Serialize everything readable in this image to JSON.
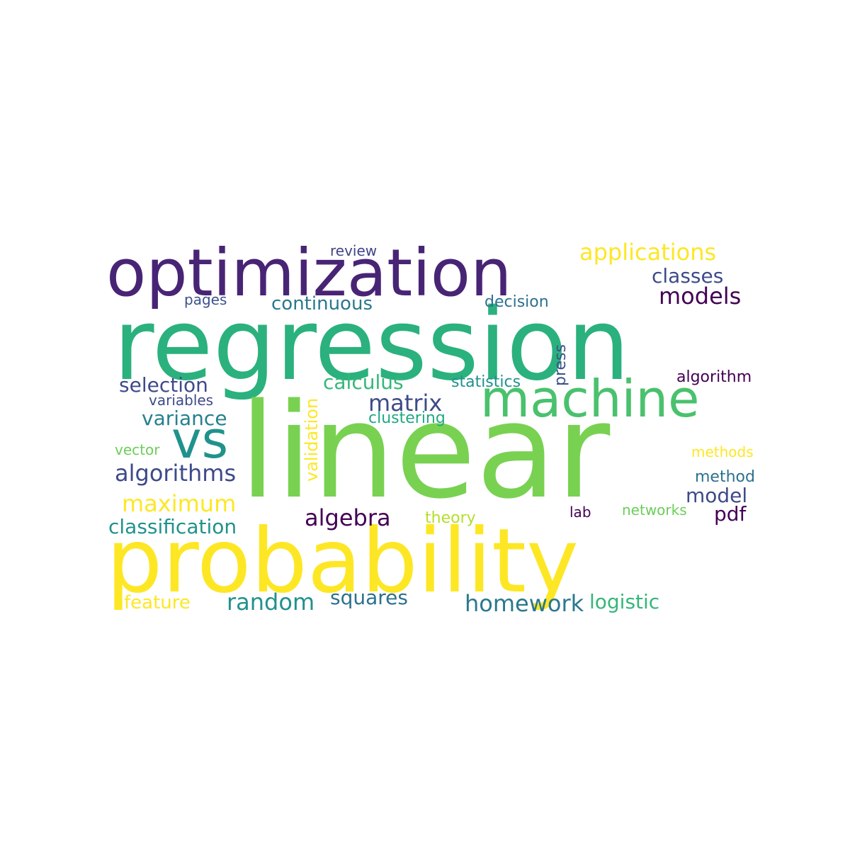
{
  "words": [
    {
      "text": "regression",
      "color": "#2bb17d"
    },
    {
      "text": "linear",
      "color": "#79d151"
    },
    {
      "text": "probability",
      "color": "#fde725"
    },
    {
      "text": "optimization",
      "color": "#482475"
    },
    {
      "text": "machine",
      "color": "#4ac16d"
    },
    {
      "text": "vs",
      "color": "#20928c"
    },
    {
      "text": "applications",
      "color": "#fde725"
    },
    {
      "text": "classes",
      "color": "#3e4a89"
    },
    {
      "text": "models",
      "color": "#440154"
    },
    {
      "text": "continuous",
      "color": "#2a788e"
    },
    {
      "text": "pages",
      "color": "#3b528b"
    },
    {
      "text": "decision",
      "color": "#2c718e"
    },
    {
      "text": "review",
      "color": "#414487"
    },
    {
      "text": "selection",
      "color": "#3e4a89"
    },
    {
      "text": "calculus",
      "color": "#35b779"
    },
    {
      "text": "statistics",
      "color": "#21918c"
    },
    {
      "text": "press",
      "color": "#3b528b"
    },
    {
      "text": "algorithm",
      "color": "#440154"
    },
    {
      "text": "variables",
      "color": "#3e4a89"
    },
    {
      "text": "matrix",
      "color": "#3e4a89"
    },
    {
      "text": "clustering",
      "color": "#22a884"
    },
    {
      "text": "variance",
      "color": "#27808e"
    },
    {
      "text": "validation",
      "color": "#fde725"
    },
    {
      "text": "vector",
      "color": "#6ccd5a"
    },
    {
      "text": "methods",
      "color": "#fde725"
    },
    {
      "text": "algorithms",
      "color": "#3e4a89"
    },
    {
      "text": "method",
      "color": "#2c718e"
    },
    {
      "text": "model",
      "color": "#3e4a89"
    },
    {
      "text": "maximum",
      "color": "#fde725"
    },
    {
      "text": "pdf",
      "color": "#440154"
    },
    {
      "text": "algebra",
      "color": "#440154"
    },
    {
      "text": "theory",
      "color": "#b5de2b"
    },
    {
      "text": "lab",
      "color": "#440154"
    },
    {
      "text": "networks",
      "color": "#6ccd5a"
    },
    {
      "text": "classification",
      "color": "#20928c"
    },
    {
      "text": "feature",
      "color": "#fde725"
    },
    {
      "text": "random",
      "color": "#21918c"
    },
    {
      "text": "squares",
      "color": "#2c718e"
    },
    {
      "text": "homework",
      "color": "#2a788e"
    },
    {
      "text": "logistic",
      "color": "#35b779"
    }
  ]
}
